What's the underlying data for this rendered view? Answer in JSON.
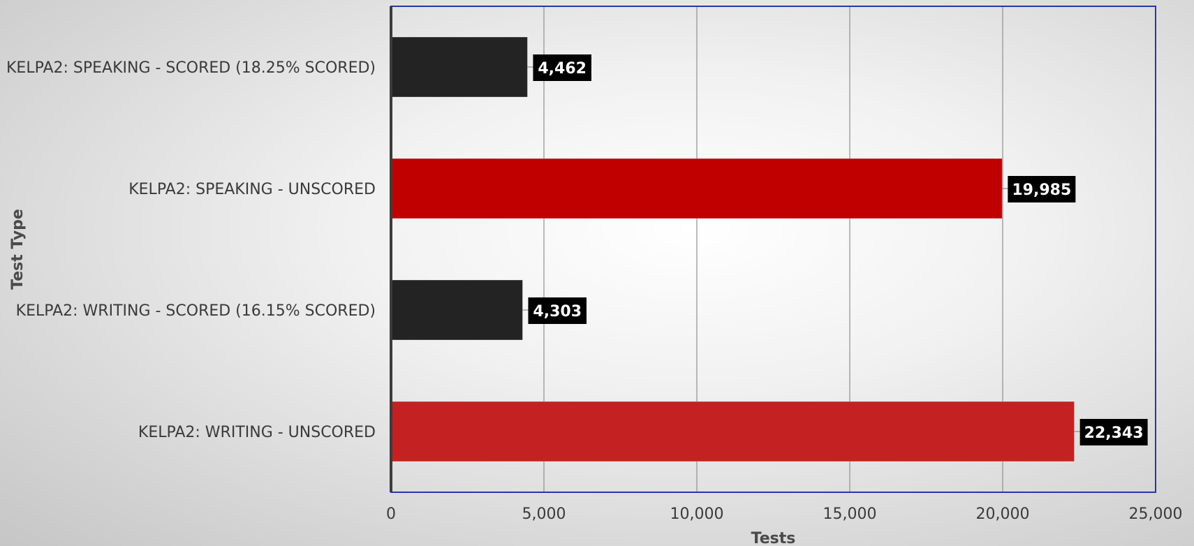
{
  "chart_data": {
    "type": "bar",
    "orientation": "horizontal",
    "categories": [
      "KELPA2: SPEAKING - SCORED (18.25% SCORED)",
      "KELPA2: SPEAKING - UNSCORED",
      "KELPA2: WRITING - SCORED (16.15% SCORED)",
      "KELPA2: WRITING - UNSCORED"
    ],
    "values": [
      4462,
      19985,
      4303,
      22343
    ],
    "value_labels": [
      "4,462",
      "19,985",
      "4,303",
      "22,343"
    ],
    "bar_colors": [
      "#232323",
      "#c00000",
      "#232323",
      "#c42222"
    ],
    "xlabel": "Tests",
    "ylabel": "Test Type",
    "xlim": [
      0,
      25000
    ],
    "xticks": [
      0,
      5000,
      10000,
      15000,
      20000,
      25000
    ],
    "xtick_labels": [
      "0",
      "5,000",
      "10,000",
      "15,000",
      "20,000",
      "25,000"
    ],
    "grid": "vertical",
    "legend": "none",
    "frame_color": "#2438a8"
  }
}
